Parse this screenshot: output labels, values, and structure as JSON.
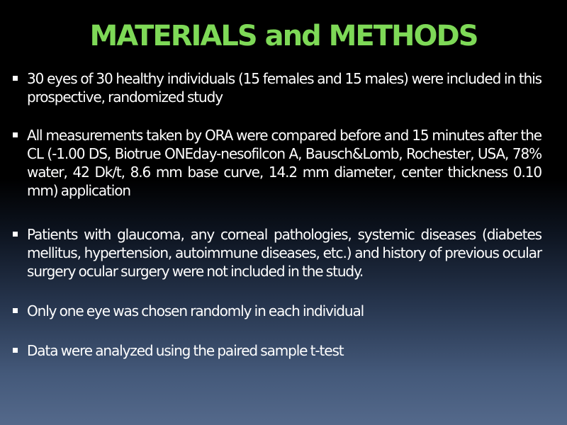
{
  "slide": {
    "title": "MATERIALS and METHODS",
    "title_color": "#7ed957",
    "bullets": [
      {
        "text": "30 eyes of 30 healthy individuals (15 females and 15 males) were included in this prospective, randomized study"
      },
      {
        "text": "All measurements taken by ORA were compared before and 15 minutes after the CL (-1.00 DS, Biotrue ONEday-nesofilcon A, Bausch&Lomb, Rochester, USA, 78% water, 42 Dk/t, 8.6 mm base curve, 14.2 mm diameter, center thickness 0.10 mm) application"
      },
      {
        "text": "Patients with glaucoma, any corneal pathologies, systemic diseases (diabetes mellitus, hypertension, autoimmune diseases, etc.) and history of previous ocular surgery ocular surgery were not included in the study."
      },
      {
        "text": "Only one eye was chosen randomly in each individual"
      },
      {
        "text": "Data were analyzed using the paired sample t-test"
      }
    ]
  }
}
